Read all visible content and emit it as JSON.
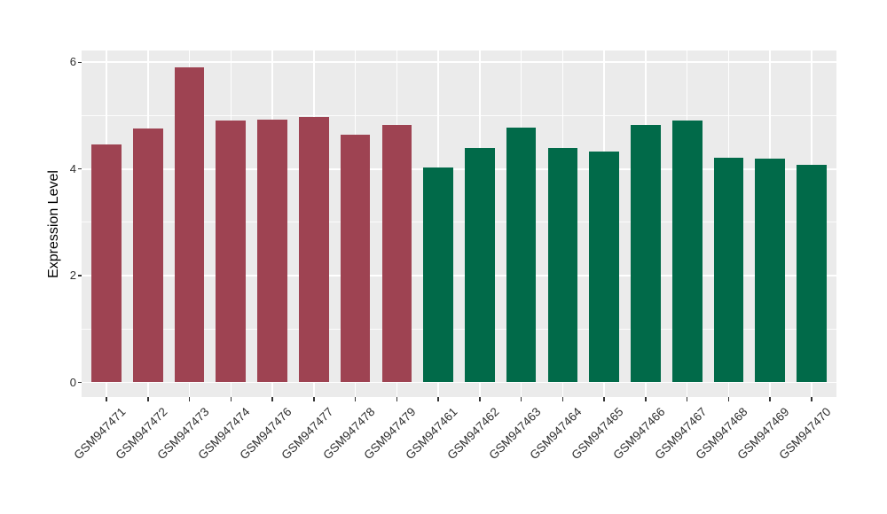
{
  "chart_data": {
    "type": "bar",
    "title": "",
    "xlabel": "",
    "ylabel": "Expression Level",
    "ylim": [
      0,
      6.2
    ],
    "yticks": [
      0,
      2,
      4,
      6
    ],
    "yticks_minor": [
      1,
      3,
      5
    ],
    "grid": true,
    "legend_position": "none",
    "categories": [
      "GSM947471",
      "GSM947472",
      "GSM947473",
      "GSM947474",
      "GSM947476",
      "GSM947477",
      "GSM947478",
      "GSM947479",
      "GSM947461",
      "GSM947462",
      "GSM947463",
      "GSM947464",
      "GSM947465",
      "GSM947466",
      "GSM947467",
      "GSM947468",
      "GSM947469",
      "GSM947470"
    ],
    "values": [
      4.46,
      4.76,
      5.91,
      4.91,
      4.92,
      4.98,
      4.64,
      4.82,
      4.02,
      4.4,
      4.77,
      4.4,
      4.32,
      4.82,
      4.91,
      4.21,
      4.2,
      4.07
    ],
    "bar_colors": [
      "#9E4352",
      "#9E4352",
      "#9E4352",
      "#9E4352",
      "#9E4352",
      "#9E4352",
      "#9E4352",
      "#9E4352",
      "#016A49",
      "#016A49",
      "#016A49",
      "#016A49",
      "#016A49",
      "#016A49",
      "#016A49",
      "#016A49",
      "#016A49",
      "#016A49"
    ],
    "group_colors": {
      "left_group": "#9E4352",
      "right_group": "#016A49"
    }
  },
  "styles": {
    "panel_background": "#EBEBEB",
    "grid_color": "#FFFFFF",
    "tick_color": "#333333",
    "axis_text_color": "#2e2e2e",
    "axis_title_color": "#000000",
    "page_background": "#FFFFFF"
  }
}
